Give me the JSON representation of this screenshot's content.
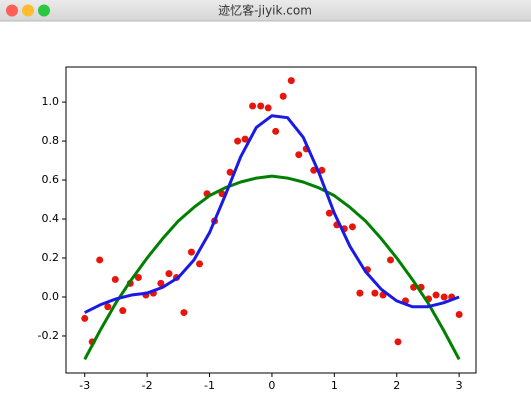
{
  "window_title": "迹忆客-jiyik.com",
  "chart_data": {
    "type": "line",
    "xlim": [
      -3.3,
      3.27
    ],
    "ylim": [
      -0.39,
      1.18
    ],
    "xticks": [
      -3,
      -2,
      -1,
      0,
      1,
      2,
      3
    ],
    "yticks": [
      -0.2,
      {
        "value": 0,
        "label": "0.0"
      },
      0.2,
      0.4,
      0.6,
      0.8,
      {
        "value": 1,
        "label": "1.0"
      }
    ],
    "series": [
      {
        "type": "scatter",
        "color": "#e8150c",
        "x": [
          -3.0,
          -2.88,
          -2.76,
          -2.63,
          -2.51,
          -2.39,
          -2.27,
          -2.14,
          -2.02,
          -1.9,
          -1.78,
          -1.65,
          -1.53,
          -1.41,
          -1.29,
          -1.16,
          -1.04,
          -0.92,
          -0.8,
          -0.67,
          -0.55,
          -0.43,
          -0.31,
          -0.18,
          -0.06,
          0.06,
          0.18,
          0.31,
          0.43,
          0.55,
          0.67,
          0.8,
          0.92,
          1.04,
          1.16,
          1.29,
          1.41,
          1.53,
          1.65,
          1.78,
          1.9,
          2.02,
          2.14,
          2.27,
          2.39,
          2.51,
          2.63,
          2.76,
          2.88,
          3.0
        ],
        "values": [
          -0.11,
          -0.23,
          0.19,
          -0.05,
          0.09,
          -0.07,
          0.07,
          0.1,
          0.01,
          0.02,
          0.07,
          0.12,
          0.1,
          -0.08,
          0.23,
          0.17,
          0.53,
          0.39,
          0.53,
          0.64,
          0.8,
          0.81,
          0.98,
          0.98,
          0.97,
          0.85,
          1.03,
          1.11,
          0.73,
          0.76,
          0.65,
          0.65,
          0.43,
          0.37,
          0.35,
          0.36,
          0.02,
          0.14,
          0.02,
          0.01,
          0.19,
          -0.23,
          -0.02,
          0.05,
          0.05,
          -0.01,
          0.01,
          0.0,
          0.0,
          -0.09
        ]
      },
      {
        "type": "line",
        "color": "#008000",
        "x": [
          -3,
          -2.75,
          -2.5,
          -2.25,
          -2,
          -1.75,
          -1.5,
          -1.25,
          -1,
          -0.75,
          -0.5,
          -0.25,
          0,
          0.25,
          0.5,
          0.75,
          1,
          1.25,
          1.5,
          1.75,
          2,
          2.25,
          2.5,
          2.75,
          3
        ],
        "values": [
          -0.32,
          -0.17,
          -0.03,
          0.09,
          0.2,
          0.3,
          0.39,
          0.46,
          0.52,
          0.56,
          0.59,
          0.61,
          0.62,
          0.61,
          0.59,
          0.56,
          0.52,
          0.46,
          0.39,
          0.3,
          0.2,
          0.09,
          -0.03,
          -0.17,
          -0.32
        ]
      },
      {
        "type": "line",
        "color": "#1a1ae6",
        "x": [
          -3,
          -2.75,
          -2.5,
          -2.25,
          -2,
          -1.75,
          -1.5,
          -1.25,
          -1,
          -0.75,
          -0.5,
          -0.25,
          0,
          0.25,
          0.5,
          0.75,
          1,
          1.25,
          1.5,
          1.75,
          2,
          2.25,
          2.5,
          2.75,
          3
        ],
        "values": [
          -0.08,
          -0.04,
          -0.01,
          0.01,
          0.02,
          0.05,
          0.1,
          0.19,
          0.33,
          0.52,
          0.72,
          0.87,
          0.93,
          0.92,
          0.82,
          0.64,
          0.43,
          0.26,
          0.13,
          0.04,
          -0.02,
          -0.05,
          -0.05,
          -0.03,
          0.0
        ]
      }
    ]
  }
}
